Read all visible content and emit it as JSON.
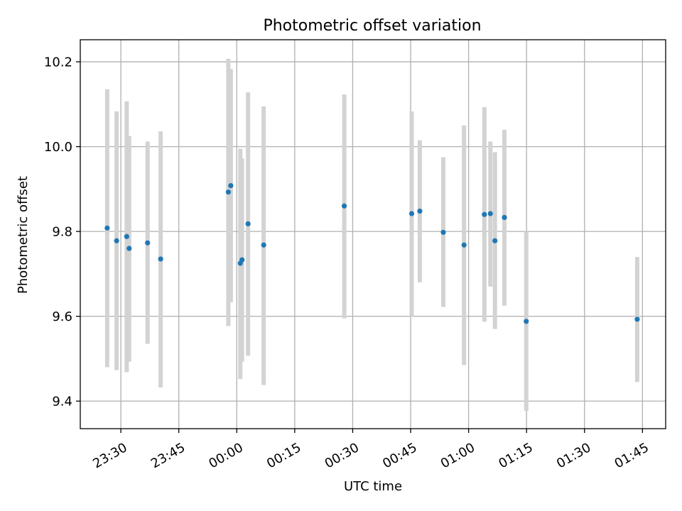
{
  "chart_data": {
    "type": "scatter",
    "title": "Photometric offset variation",
    "xlabel": "UTC time",
    "ylabel": "Photometric offset",
    "x_axis_type": "time",
    "x_date_base": "2000-01-01",
    "xlim": [
      "2000-01-01 23:19:30",
      "2000-01-02 01:51:00"
    ],
    "ylim": [
      9.335,
      10.252
    ],
    "x_ticks": [
      {
        "t": "2000-01-01 23:30",
        "label": "23:30"
      },
      {
        "t": "2000-01-01 23:45",
        "label": "23:45"
      },
      {
        "t": "2000-01-02 00:00",
        "label": "00:00"
      },
      {
        "t": "2000-01-02 00:15",
        "label": "00:15"
      },
      {
        "t": "2000-01-02 00:30",
        "label": "00:30"
      },
      {
        "t": "2000-01-02 00:45",
        "label": "00:45"
      },
      {
        "t": "2000-01-02 01:00",
        "label": "01:00"
      },
      {
        "t": "2000-01-02 01:15",
        "label": "01:15"
      },
      {
        "t": "2000-01-02 01:30",
        "label": "01:30"
      },
      {
        "t": "2000-01-02 01:45",
        "label": "01:45"
      }
    ],
    "y_ticks": [
      9.4,
      9.6,
      9.8,
      10.0,
      10.2
    ],
    "y_tick_labels": [
      "9.4",
      "9.6",
      "9.8",
      "10.0",
      "10.2"
    ],
    "grid": true,
    "marker_color": "#1f77b4",
    "errorbar_color": "#d3d3d3",
    "points": [
      {
        "t": "2000-01-01 23:26:28",
        "y": 9.808,
        "lo": 9.48,
        "hi": 10.135
      },
      {
        "t": "2000-01-01 23:28:54",
        "y": 9.778,
        "lo": 9.473,
        "hi": 10.083
      },
      {
        "t": "2000-01-01 23:31:31",
        "y": 9.788,
        "lo": 9.468,
        "hi": 10.107
      },
      {
        "t": "2000-01-01 23:32:09",
        "y": 9.76,
        "lo": 9.493,
        "hi": 10.025
      },
      {
        "t": "2000-01-01 23:36:55",
        "y": 9.773,
        "lo": 9.535,
        "hi": 10.012
      },
      {
        "t": "2000-01-01 23:40:18",
        "y": 9.735,
        "lo": 9.432,
        "hi": 10.036
      },
      {
        "t": "2000-01-01 23:57:49",
        "y": 9.893,
        "lo": 9.577,
        "hi": 10.207
      },
      {
        "t": "2000-01-01 23:58:27",
        "y": 9.908,
        "lo": 9.633,
        "hi": 10.183
      },
      {
        "t": "2000-01-02 00:00:55",
        "y": 9.725,
        "lo": 9.452,
        "hi": 9.995
      },
      {
        "t": "2000-01-02 00:01:22",
        "y": 9.733,
        "lo": 9.493,
        "hi": 9.972
      },
      {
        "t": "2000-01-02 00:02:55",
        "y": 9.818,
        "lo": 9.507,
        "hi": 10.128
      },
      {
        "t": "2000-01-02 00:06:58",
        "y": 9.768,
        "lo": 9.438,
        "hi": 10.095
      },
      {
        "t": "2000-01-02 00:27:49",
        "y": 9.86,
        "lo": 9.595,
        "hi": 10.123
      },
      {
        "t": "2000-01-02 00:45:16",
        "y": 9.842,
        "lo": 9.6,
        "hi": 10.083
      },
      {
        "t": "2000-01-02 00:47:22",
        "y": 9.848,
        "lo": 9.68,
        "hi": 10.015
      },
      {
        "t": "2000-01-02 00:53:27",
        "y": 9.798,
        "lo": 9.622,
        "hi": 9.975
      },
      {
        "t": "2000-01-02 00:58:49",
        "y": 9.768,
        "lo": 9.485,
        "hi": 10.05
      },
      {
        "t": "2000-01-02 01:04:05",
        "y": 9.84,
        "lo": 9.587,
        "hi": 10.093
      },
      {
        "t": "2000-01-02 01:05:38",
        "y": 9.842,
        "lo": 9.67,
        "hi": 10.012
      },
      {
        "t": "2000-01-02 01:06:49",
        "y": 9.778,
        "lo": 9.57,
        "hi": 9.987
      },
      {
        "t": "2000-01-02 01:09:16",
        "y": 9.833,
        "lo": 9.625,
        "hi": 10.04
      },
      {
        "t": "2000-01-02 01:14:55",
        "y": 9.588,
        "lo": 9.377,
        "hi": 9.8
      },
      {
        "t": "2000-01-02 01:43:38",
        "y": 9.593,
        "lo": 9.445,
        "hi": 9.74
      }
    ]
  }
}
